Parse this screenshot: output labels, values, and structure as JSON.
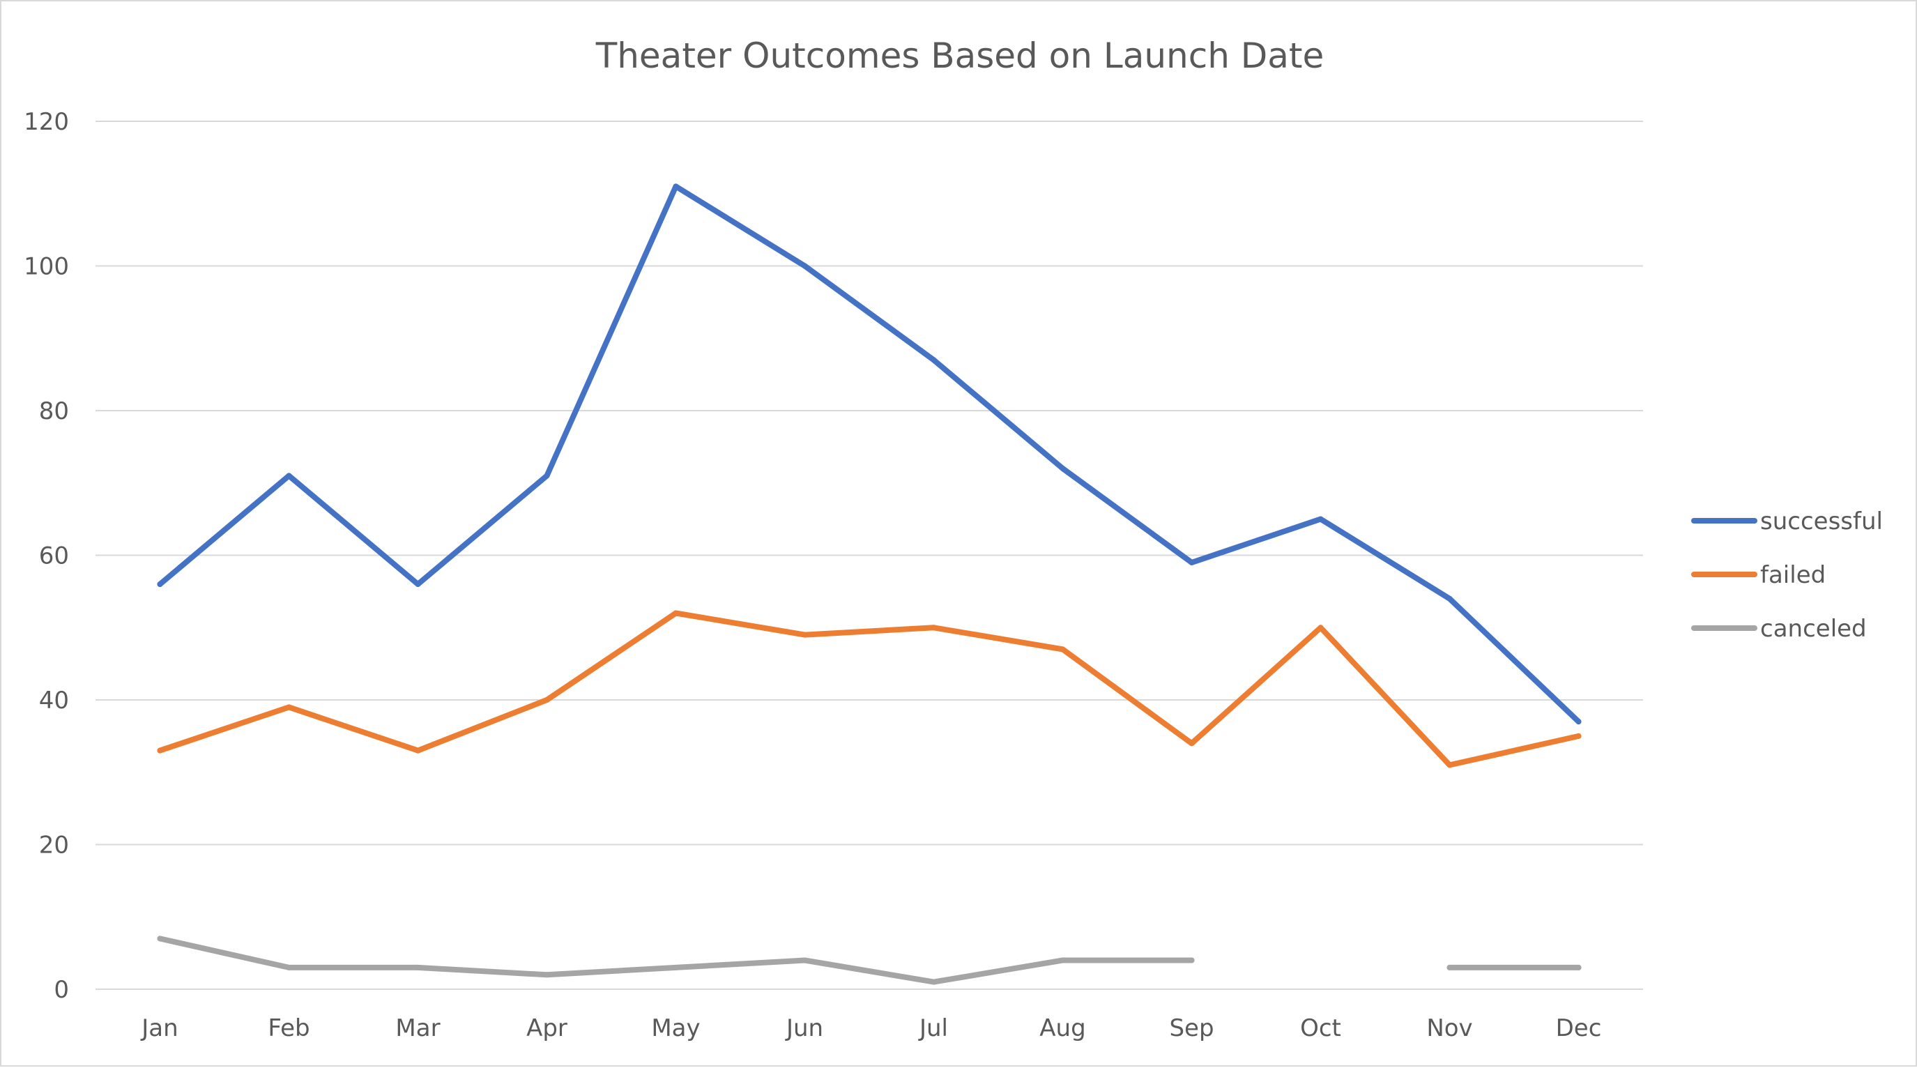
{
  "chart_data": {
    "type": "line",
    "title": "Theater Outcomes Based on Launch Date",
    "xlabel": "",
    "ylabel": "",
    "categories": [
      "Jan",
      "Feb",
      "Mar",
      "Apr",
      "May",
      "Jun",
      "Jul",
      "Aug",
      "Sep",
      "Oct",
      "Nov",
      "Dec"
    ],
    "ylim": [
      0,
      120
    ],
    "yticks": [
      0,
      20,
      40,
      60,
      80,
      100,
      120
    ],
    "grid": true,
    "legend_position": "right",
    "series": [
      {
        "name": "successful",
        "color": "#4472c4",
        "values": [
          56,
          71,
          56,
          71,
          111,
          100,
          87,
          72,
          59,
          65,
          54,
          37
        ]
      },
      {
        "name": "failed",
        "color": "#ed7d31",
        "values": [
          33,
          39,
          33,
          40,
          52,
          49,
          50,
          47,
          34,
          50,
          31,
          35
        ]
      },
      {
        "name": "canceled",
        "color": "#a5a5a5",
        "values": [
          7,
          3,
          3,
          2,
          3,
          4,
          1,
          4,
          4,
          null,
          3,
          3
        ]
      }
    ]
  }
}
